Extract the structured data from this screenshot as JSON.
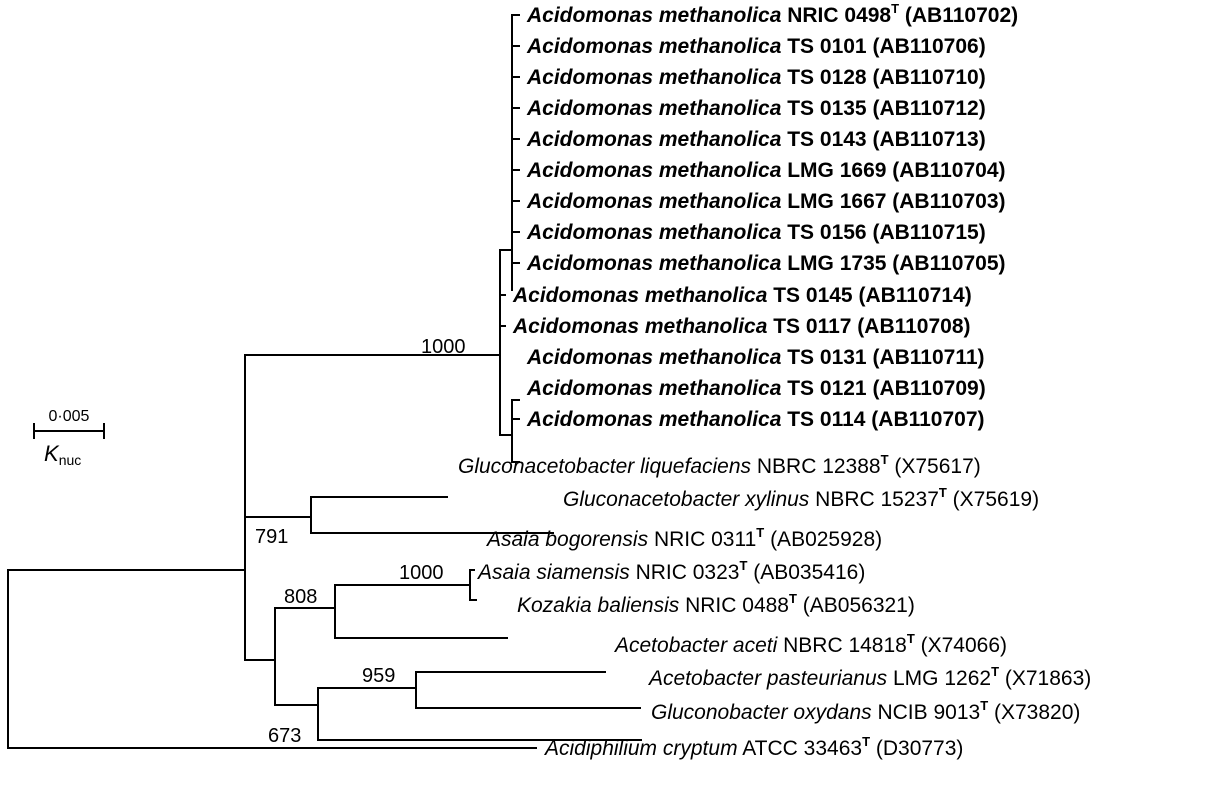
{
  "scale": {
    "value": "0·005",
    "symbol": "K",
    "subscript": "nuc"
  },
  "leaves": [
    {
      "genus": "Acidomonas methanolica",
      "strain": "NRIC 0498",
      "type": true,
      "accession": "(AB110702)",
      "bold": true
    },
    {
      "genus": "Acidomonas methanolica",
      "strain": "TS 0101",
      "type": false,
      "accession": "(AB110706)",
      "bold": true
    },
    {
      "genus": "Acidomonas methanolica",
      "strain": "TS 0128",
      "type": false,
      "accession": "(AB110710)",
      "bold": true
    },
    {
      "genus": "Acidomonas methanolica",
      "strain": "TS 0135",
      "type": false,
      "accession": "(AB110712)",
      "bold": true
    },
    {
      "genus": "Acidomonas methanolica",
      "strain": "TS 0143",
      "type": false,
      "accession": "(AB110713)",
      "bold": true
    },
    {
      "genus": "Acidomonas methanolica",
      "strain": "LMG 1669",
      "type": false,
      "accession": "(AB110704)",
      "bold": true
    },
    {
      "genus": "Acidomonas methanolica",
      "strain": "LMG 1667",
      "type": false,
      "accession": "(AB110703)",
      "bold": true
    },
    {
      "genus": "Acidomonas methanolica",
      "strain": "TS 0156",
      "type": false,
      "accession": "(AB110715)",
      "bold": true
    },
    {
      "genus": "Acidomonas methanolica",
      "strain": "LMG 1735",
      "type": false,
      "accession": "(AB110705)",
      "bold": true
    },
    {
      "genus": "Acidomonas methanolica",
      "strain": "TS 0145",
      "type": false,
      "accession": "(AB110714)",
      "bold": true
    },
    {
      "genus": "Acidomonas methanolica",
      "strain": "TS 0117",
      "type": false,
      "accession": "(AB110708)",
      "bold": true
    },
    {
      "genus": "Acidomonas methanolica",
      "strain": "TS 0131",
      "type": false,
      "accession": "(AB110711)",
      "bold": true
    },
    {
      "genus": "Acidomonas methanolica",
      "strain": "TS 0121",
      "type": false,
      "accession": "(AB110709)",
      "bold": true
    },
    {
      "genus": "Acidomonas methanolica",
      "strain": "TS 0114",
      "type": false,
      "accession": "(AB110707)",
      "bold": true
    },
    {
      "genus": "Gluconacetobacter liquefaciens",
      "strain": "NBRC 12388",
      "type": true,
      "accession": "(X75617)",
      "bold": false
    },
    {
      "genus": "Gluconacetobacter xylinus",
      "strain": "NBRC 15237",
      "type": true,
      "accession": "(X75619)",
      "bold": false
    },
    {
      "genus": "Asaia bogorensis",
      "strain": "NRIC 0311",
      "type": true,
      "accession": "(AB025928)",
      "bold": false
    },
    {
      "genus": "Asaia siamensis",
      "strain": "NRIC 0323",
      "type": true,
      "accession": "(AB035416)",
      "bold": false
    },
    {
      "genus": "Kozakia baliensis",
      "strain": "NRIC 0488",
      "type": true,
      "accession": "(AB056321)",
      "bold": false
    },
    {
      "genus": "Acetobacter aceti",
      "strain": "NBRC 14818",
      "type": true,
      "accession": "(X74066)",
      "bold": false
    },
    {
      "genus": "Acetobacter pasteurianus",
      "strain": "LMG 1262",
      "type": true,
      "accession": "(X71863)",
      "bold": false
    },
    {
      "genus": "Gluconobacter oxydans",
      "strain": "NCIB 9013",
      "type": true,
      "accession": "(X73820)",
      "bold": false
    },
    {
      "genus": "Acidiphilium cryptum",
      "strain": "ATCC 33463",
      "type": true,
      "accession": "(D30773)",
      "bold": false
    }
  ],
  "type_marker": "T",
  "bootstrap": [
    {
      "id": "acidomonas",
      "value": "1000"
    },
    {
      "id": "gluconacetobacter",
      "value": "791"
    },
    {
      "id": "asaia-kozakia",
      "value": "808"
    },
    {
      "id": "asaia",
      "value": "1000"
    },
    {
      "id": "acetobacter",
      "value": "959"
    },
    {
      "id": "acetobacter-gluconobacter",
      "value": "673"
    }
  ]
}
